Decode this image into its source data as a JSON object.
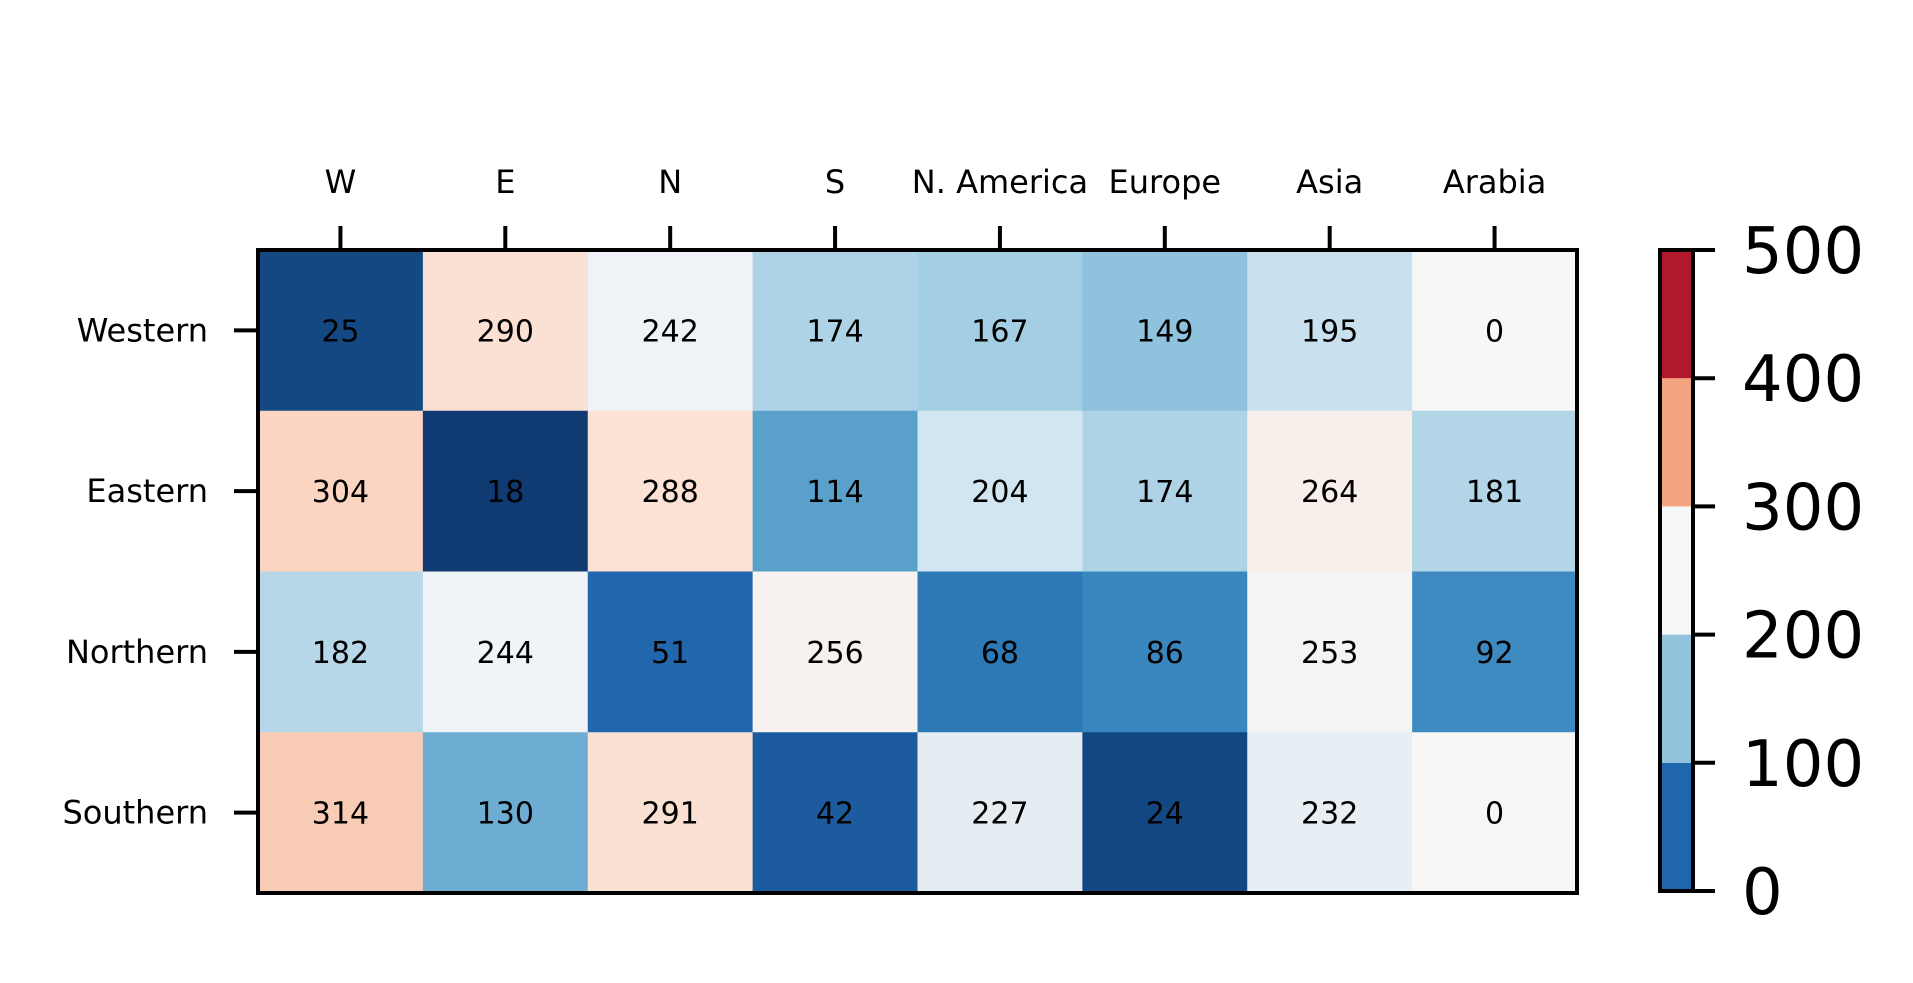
{
  "chart_data": {
    "type": "heatmap",
    "title": "",
    "xlabel": "",
    "ylabel": "",
    "x_categories": [
      "W",
      "E",
      "N",
      "S",
      "N. America",
      "Europe",
      "Asia",
      "Arabia"
    ],
    "y_categories": [
      "Western",
      "Eastern",
      "Northern",
      "Southern"
    ],
    "values": [
      [
        25,
        290,
        242,
        174,
        167,
        149,
        195,
        0
      ],
      [
        304,
        18,
        288,
        114,
        204,
        174,
        264,
        181
      ],
      [
        182,
        244,
        51,
        256,
        68,
        86,
        253,
        92
      ],
      [
        314,
        130,
        291,
        42,
        227,
        24,
        232,
        0
      ]
    ],
    "cell_colors": [
      [
        "#134883",
        "#fbe1d3",
        "#eff3f7",
        "#afd3e6",
        "#a4cee3",
        "#8fc2dd",
        "#c9e1ee",
        "#f8f7f7"
      ],
      [
        "#fbd5c1",
        "#103a72",
        "#fbe2d5",
        "#59a1cb",
        "#d1e6f1",
        "#afd3e6",
        "#f8efea",
        "#b2d5e7"
      ],
      [
        "#b5d7e8",
        "#f0f4f6",
        "#2267ad",
        "#f7f2ef",
        "#2c79b5",
        "#3a87bf",
        "#f6f4f2",
        "#3d8ac1"
      ],
      [
        "#f9ccb5",
        "#6eadd3",
        "#fbe1d3",
        "#1c5c9e",
        "#e5edf3",
        "#134781",
        "#e7eff4",
        "#f8f7f7"
      ]
    ],
    "colorbar": {
      "range": [
        0,
        500
      ],
      "ticks": [
        "0",
        "100",
        "200",
        "300",
        "400",
        "500"
      ],
      "bins": [
        {
          "from": 0,
          "to": 100,
          "color": "#2066ac"
        },
        {
          "from": 100,
          "to": 200,
          "color": "#91c3dd"
        },
        {
          "from": 200,
          "to": 300,
          "color": "#f6f7f7"
        },
        {
          "from": 300,
          "to": 400,
          "color": "#f3a481"
        },
        {
          "from": 400,
          "to": 500,
          "color": "#b2182b"
        }
      ]
    },
    "x_axis_position": "top",
    "grid": false
  }
}
